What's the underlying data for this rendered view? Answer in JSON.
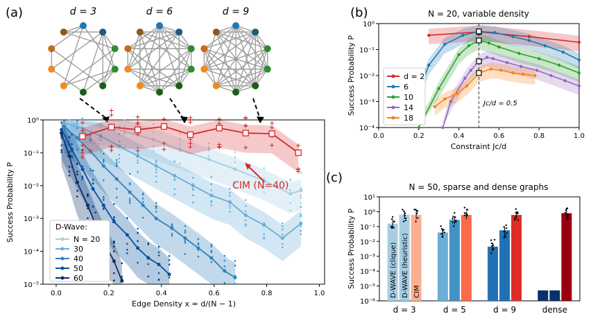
{
  "panel_labels": {
    "a": "(a)",
    "b": "(b)",
    "c": "(c)"
  },
  "graphs": {
    "labels": [
      "d = 3",
      "d = 6",
      "d = 9"
    ],
    "node_colors": [
      "#1f77b4",
      "#1f5a7a",
      "#2e8b2e",
      "#2e8b2e",
      "#1a5e1a",
      "#1a5e1a",
      "#f08a24",
      "#f08a24",
      "#c66a14",
      "#8b5a1c"
    ]
  },
  "chart_data": [
    {
      "id": "a",
      "type": "line",
      "title": "",
      "xlabel": "Edge Density x = d/(N − 1)",
      "ylabel": "Success Probability P",
      "xlim": [
        -0.05,
        1.02
      ],
      "ylim_log10": [
        -5,
        0
      ],
      "x_ticks": [
        "0.0",
        "0.2",
        "0.4",
        "0.6",
        "0.8",
        "1.0"
      ],
      "x_tick_values": [
        0,
        0.2,
        0.4,
        0.6,
        0.8,
        1.0
      ],
      "y_ticks": [
        "10⁰",
        "10⁻¹",
        "10⁻²",
        "10⁻³",
        "10⁻⁴",
        "10⁻⁵"
      ],
      "y_tick_values": [
        0,
        -1,
        -2,
        -3,
        -4,
        -5
      ],
      "legend_title": "D-Wave:",
      "series": [
        {
          "name": "N = 20",
          "color": "#a6cee3",
          "x": [
            0.05,
            0.16,
            0.26,
            0.37,
            0.47,
            0.58,
            0.68,
            0.79,
            0.89,
            0.93
          ],
          "log10_y": [
            -0.05,
            -0.15,
            -0.35,
            -0.6,
            -0.9,
            -1.2,
            -1.5,
            -1.85,
            -2.25,
            -2.15
          ]
        },
        {
          "name": "30",
          "color": "#6baed6",
          "x": [
            0.03,
            0.1,
            0.17,
            0.24,
            0.31,
            0.38,
            0.45,
            0.52,
            0.59,
            0.66,
            0.72,
            0.79,
            0.86,
            0.93
          ],
          "log10_y": [
            -0.1,
            -0.25,
            -0.5,
            -0.8,
            -1.1,
            -1.4,
            -1.7,
            -2.0,
            -2.3,
            -2.5,
            -2.9,
            -3.2,
            -3.6,
            -3.15
          ]
        },
        {
          "name": "40",
          "color": "#3182bd",
          "x": [
            0.03,
            0.08,
            0.13,
            0.18,
            0.23,
            0.28,
            0.33,
            0.38,
            0.44,
            0.49,
            0.54,
            0.59,
            0.64,
            0.68
          ],
          "log10_y": [
            -0.2,
            -0.55,
            -0.95,
            -1.4,
            -1.8,
            -2.2,
            -2.6,
            -3.0,
            -3.3,
            -3.6,
            -3.9,
            -4.2,
            -4.6,
            -4.8
          ]
        },
        {
          "name": "50",
          "color": "#08519c",
          "x": [
            0.02,
            0.06,
            0.1,
            0.14,
            0.18,
            0.22,
            0.27,
            0.31,
            0.35,
            0.39,
            0.43
          ],
          "log10_y": [
            -0.3,
            -0.9,
            -1.5,
            -2.1,
            -2.6,
            -3.1,
            -3.5,
            -3.9,
            -4.2,
            -4.4,
            -4.7
          ]
        },
        {
          "name": "60",
          "color": "#08306b",
          "x": [
            0.02,
            0.05,
            0.08,
            0.12,
            0.15,
            0.18,
            0.22,
            0.25
          ],
          "log10_y": [
            -0.4,
            -1.1,
            -1.9,
            -2.6,
            -3.2,
            -3.7,
            -4.3,
            -4.9
          ]
        }
      ],
      "cim_series": {
        "name": "CIM (N=40)",
        "color": "#d62728",
        "x": [
          0.1,
          0.21,
          0.31,
          0.41,
          0.51,
          0.62,
          0.72,
          0.82,
          0.92
        ],
        "log10_y": [
          -0.5,
          -0.22,
          -0.3,
          -0.2,
          -0.45,
          -0.25,
          -0.4,
          -0.42,
          -1.0
        ]
      },
      "annotation": "CIM (N=40)"
    },
    {
      "id": "b",
      "type": "line",
      "title": "N = 20, variable density",
      "xlabel": "Constraint Jc/d",
      "ylabel": "Success Probability P",
      "xlim": [
        0.0,
        1.0
      ],
      "ylim_log10": [
        -4,
        0
      ],
      "x_ticks": [
        "0.0",
        "0.2",
        "0.4",
        "0.6",
        "0.8",
        "1.0"
      ],
      "x_tick_values": [
        0,
        0.2,
        0.4,
        0.6,
        0.8,
        1.0
      ],
      "y_ticks": [
        "10⁰",
        "10⁻¹",
        "10⁻²",
        "10⁻³",
        "10⁻⁴"
      ],
      "y_tick_values": [
        0,
        -1,
        -2,
        -3,
        -4
      ],
      "vline": 0.5,
      "vline_label": "Jc/d = 0.5",
      "series": [
        {
          "name": "d = 2",
          "color": "#d62728",
          "x": [
            0.25,
            0.5,
            0.75,
            1.0
          ],
          "log10_y": [
            -0.45,
            -0.32,
            -0.5,
            -0.72
          ]
        },
        {
          "name": "6",
          "color": "#1f77b4",
          "x": [
            0.17,
            0.25,
            0.33,
            0.42,
            0.5,
            0.58,
            0.67,
            0.75,
            0.83,
            0.92,
            1.0
          ],
          "log10_y": [
            -3.2,
            -1.6,
            -0.8,
            -0.45,
            -0.3,
            -0.35,
            -0.5,
            -0.65,
            -0.85,
            -1.1,
            -1.4
          ]
        },
        {
          "name": "10",
          "color": "#2ca02c",
          "x": [
            0.2,
            0.3,
            0.4,
            0.45,
            0.5,
            0.55,
            0.6,
            0.7,
            0.8,
            0.9,
            1.0
          ],
          "log10_y": [
            -4,
            -2.5,
            -1.2,
            -0.85,
            -0.65,
            -0.75,
            -0.9,
            -1.15,
            -1.35,
            -1.6,
            -1.9
          ]
        },
        {
          "name": "14",
          "color": "#9467bd",
          "x": [
            0.32,
            0.36,
            0.43,
            0.46,
            0.5,
            0.54,
            0.57,
            0.64,
            0.71,
            0.79,
            0.86,
            0.93,
            1.0
          ],
          "log10_y": [
            -4,
            -3.0,
            -2.1,
            -1.8,
            -1.45,
            -1.3,
            -1.35,
            -1.5,
            -1.65,
            -1.8,
            -2.0,
            -2.2,
            -2.4
          ]
        },
        {
          "name": "18",
          "color": "#ff7f0e",
          "x": [
            0.28,
            0.33,
            0.39,
            0.44,
            0.5,
            0.56,
            0.61,
            0.67,
            0.72,
            0.78
          ],
          "log10_y": [
            -3.2,
            -2.9,
            -2.7,
            -2.4,
            -1.9,
            -1.75,
            -1.8,
            -1.9,
            -1.95,
            -2.0
          ]
        }
      ]
    },
    {
      "id": "c",
      "type": "bar",
      "title": "N = 50, sparse and dense graphs",
      "xlabel": "",
      "ylabel": "Success Probability P",
      "ylim_log10": [
        -6,
        1
      ],
      "y_ticks": [
        "10¹",
        "10⁰",
        "10⁻¹",
        "10⁻²",
        "10⁻³",
        "10⁻⁴",
        "10⁻⁵",
        "10⁻⁶"
      ],
      "y_tick_values": [
        1,
        0,
        -1,
        -2,
        -3,
        -4,
        -5,
        -6
      ],
      "categories": [
        "d = 3",
        "d = 5",
        "d = 9",
        "dense"
      ],
      "series": [
        {
          "name": "D-WAVE (clique)",
          "colors": [
            "#a6cee3",
            "#6baed6",
            "#2171b5",
            "#08306b"
          ],
          "log10_values": [
            -0.8,
            -1.4,
            -2.35,
            -5.3
          ]
        },
        {
          "name": "D-WAVE (heuristic)",
          "colors": [
            "#a6cee3",
            "#4292c6",
            "#2171b5",
            "#08306b"
          ],
          "log10_values": [
            -0.2,
            -0.55,
            -1.25,
            -5.3
          ]
        },
        {
          "name": "CIM",
          "colors": [
            "#fcae91",
            "#fb6a4a",
            "#de2d26",
            "#99000d"
          ],
          "log10_values": [
            -0.22,
            -0.22,
            -0.22,
            -0.1
          ]
        }
      ]
    }
  ]
}
